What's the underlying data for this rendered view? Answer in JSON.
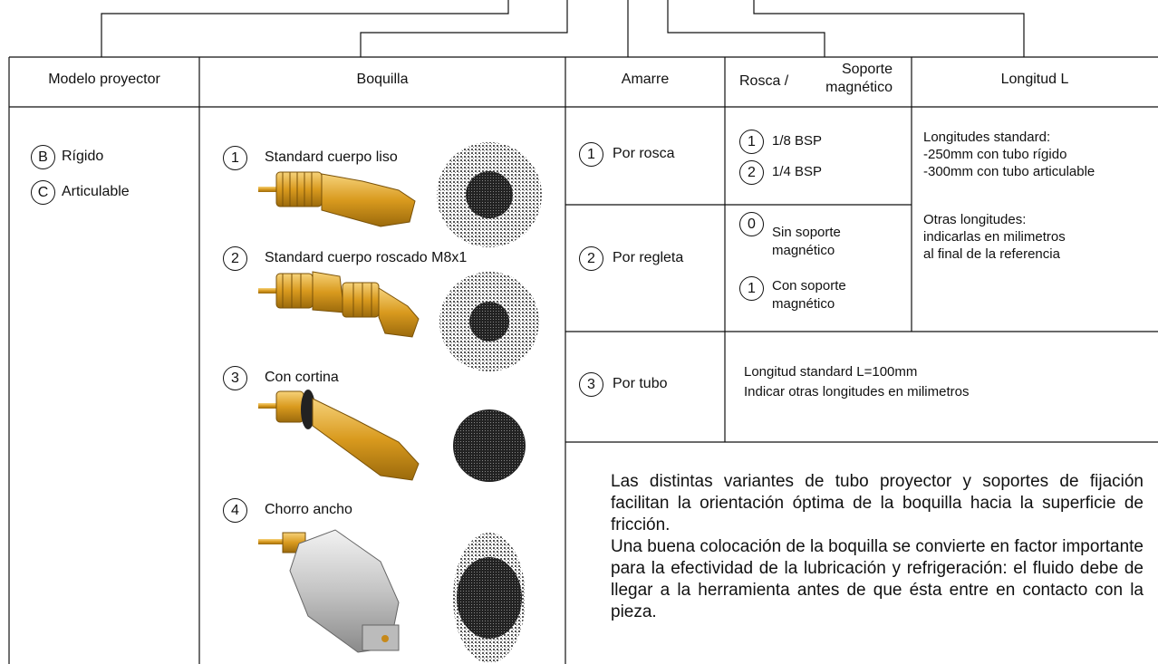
{
  "table": {
    "headers": [
      "Modelo proyector",
      "Boquilla",
      "Amarre",
      "Rosca /",
      "Soporte magnético",
      "Longitud L"
    ]
  },
  "modelo": [
    {
      "code": "B",
      "label": "Rígido"
    },
    {
      "code": "C",
      "label": "Articulable"
    }
  ],
  "boquilla": [
    {
      "code": "1",
      "label": "Standard cuerpo liso"
    },
    {
      "code": "2",
      "label": "Standard cuerpo roscado M8x1"
    },
    {
      "code": "3",
      "label": "Con cortina"
    },
    {
      "code": "4",
      "label": "Chorro ancho"
    }
  ],
  "amarre": [
    {
      "code": "1",
      "label": "Por rosca"
    },
    {
      "code": "2",
      "label": "Por regleta"
    },
    {
      "code": "3",
      "label": "Por tubo"
    }
  ],
  "rosca": [
    {
      "code": "1",
      "label": "1/8 BSP"
    },
    {
      "code": "2",
      "label": "1/4 BSP"
    }
  ],
  "soporte": [
    {
      "code": "0",
      "label": "Sin soporte magnético"
    },
    {
      "code": "1",
      "label": "Con soporte magnético"
    }
  ],
  "longitud": {
    "standard": [
      "Longitudes standard:",
      "-250mm con tubo rígido",
      "-300mm con tubo articulable"
    ],
    "otras": [
      "Otras longitudes:",
      "indicarlas en milimetros",
      "al final de la referencia"
    ]
  },
  "tubo": [
    "Longitud standard L=100mm",
    "Indicar otras longitudes en milimetros"
  ],
  "note": [
    "Las distintas variantes de tubo proyector y soportes de fijación facilitan la orientación óptima de la boquilla hacia la superficie de fricción.",
    "Una buena colocación de la boquilla se convierte en factor importante para la efectividad de la lubricación y refrigeración: el fluido debe de llegar a la herramienta antes de que ésta entre en contacto con la pieza."
  ]
}
